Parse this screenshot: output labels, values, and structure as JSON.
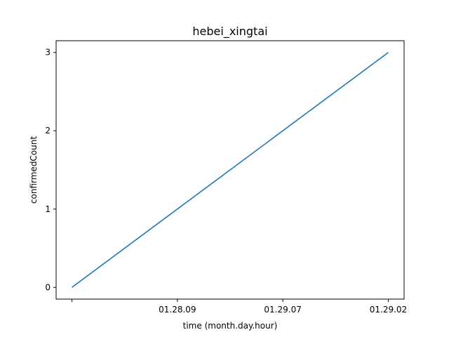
{
  "chart_data": {
    "type": "line",
    "title": "hebei_xingtai",
    "xlabel": "time (month.day.hour)",
    "ylabel": "confirmedCount",
    "x_tick_labels": [
      "",
      "01.28.09",
      "01.29.07",
      "01.29.02"
    ],
    "x_values": [
      0,
      3
    ],
    "y_ticks": [
      0,
      1,
      2,
      3
    ],
    "ylim": [
      -0.15,
      3.15
    ],
    "xlim": [
      -0.15,
      3.15
    ],
    "grid": false,
    "series": [
      {
        "values": [
          0,
          3
        ],
        "color": "#1f77b4"
      }
    ]
  }
}
